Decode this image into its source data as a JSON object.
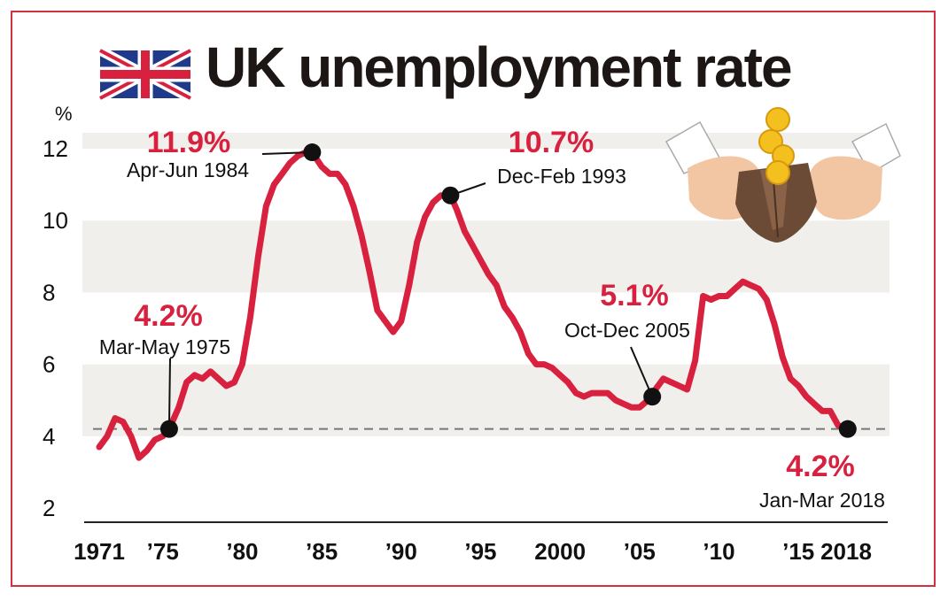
{
  "chart_data": {
    "type": "line",
    "title": "UK unemployment rate",
    "ylabel": "%",
    "xlabel": "",
    "xlim": [
      1971,
      2018
    ],
    "ylim": [
      2,
      12
    ],
    "y_ticks": [
      "2",
      "4",
      "6",
      "8",
      "10",
      "12"
    ],
    "x_tick_labels": [
      {
        "x": 1971,
        "label": "1971"
      },
      {
        "x": 1975,
        "label": "’75"
      },
      {
        "x": 1980,
        "label": "’80"
      },
      {
        "x": 1985,
        "label": "’85"
      },
      {
        "x": 1990,
        "label": "’90"
      },
      {
        "x": 1995,
        "label": "’95"
      },
      {
        "x": 2000,
        "label": "2000"
      },
      {
        "x": 2005,
        "label": "’05"
      },
      {
        "x": 2010,
        "label": "’10"
      },
      {
        "x": 2015,
        "label": "’15"
      },
      {
        "x": 2018,
        "label": "2018"
      }
    ],
    "reference_line": 4.2,
    "grid": "alternating horizontal bands",
    "series": [
      {
        "x": [
          1971.0,
          1971.5,
          1972.0,
          1972.5,
          1973.0,
          1973.5,
          1974.0,
          1974.5,
          1975.0,
          1975.4,
          1976.0,
          1976.5,
          1977.0,
          1977.5,
          1978.0,
          1978.5,
          1979.0,
          1979.5,
          1980.0,
          1980.5,
          1981.0,
          1981.5,
          1982.0,
          1982.5,
          1983.0,
          1983.5,
          1984.0,
          1984.4,
          1985.0,
          1985.5,
          1986.0,
          1986.5,
          1987.0,
          1987.5,
          1988.0,
          1988.5,
          1989.0,
          1989.5,
          1990.0,
          1990.5,
          1991.0,
          1991.5,
          1992.0,
          1992.5,
          1993.1,
          1993.5,
          1994.0,
          1994.5,
          1995.0,
          1995.5,
          1996.0,
          1996.5,
          1997.0,
          1997.5,
          1998.0,
          1998.5,
          1999.0,
          1999.5,
          2000.0,
          2000.5,
          2001.0,
          2001.5,
          2002.0,
          2002.5,
          2003.0,
          2003.5,
          2004.0,
          2004.5,
          2005.0,
          2005.8,
          2006.0,
          2006.5,
          2007.0,
          2007.5,
          2008.0,
          2008.5,
          2009.0,
          2009.5,
          2010.0,
          2010.5,
          2011.0,
          2011.5,
          2012.0,
          2012.5,
          2013.0,
          2013.5,
          2014.0,
          2014.5,
          2015.0,
          2015.5,
          2016.0,
          2016.5,
          2017.0,
          2017.5,
          2018.1
        ],
        "values": [
          3.7,
          4.0,
          4.5,
          4.4,
          4.0,
          3.4,
          3.6,
          3.9,
          4.0,
          4.2,
          4.8,
          5.5,
          5.7,
          5.6,
          5.8,
          5.6,
          5.4,
          5.5,
          6.0,
          7.3,
          9.0,
          10.4,
          11.0,
          11.3,
          11.6,
          11.8,
          11.9,
          11.9,
          11.5,
          11.3,
          11.3,
          11.0,
          10.4,
          9.6,
          8.6,
          7.5,
          7.2,
          6.9,
          7.2,
          8.2,
          9.4,
          10.1,
          10.5,
          10.7,
          10.7,
          10.3,
          9.7,
          9.3,
          8.9,
          8.5,
          8.2,
          7.6,
          7.3,
          6.9,
          6.3,
          6.0,
          6.0,
          5.9,
          5.7,
          5.5,
          5.2,
          5.1,
          5.2,
          5.2,
          5.2,
          5.0,
          4.9,
          4.8,
          4.8,
          5.1,
          5.3,
          5.6,
          5.5,
          5.4,
          5.3,
          6.1,
          7.9,
          7.8,
          7.9,
          7.9,
          8.1,
          8.3,
          8.2,
          8.1,
          7.8,
          7.1,
          6.2,
          5.6,
          5.4,
          5.1,
          4.9,
          4.7,
          4.7,
          4.3,
          4.2
        ]
      }
    ],
    "annotations": [
      {
        "x": 1975.4,
        "y": 4.2,
        "value_label": "4.2%",
        "date_label": "Mar-May 1975"
      },
      {
        "x": 1984.4,
        "y": 11.9,
        "value_label": "11.9%",
        "date_label": "Apr-Jun 1984"
      },
      {
        "x": 1993.1,
        "y": 10.7,
        "value_label": "10.7%",
        "date_label": "Dec-Feb 1993"
      },
      {
        "x": 2005.8,
        "y": 5.1,
        "value_label": "5.1%",
        "date_label": "Oct-Dec 2005"
      },
      {
        "x": 2018.1,
        "y": 4.2,
        "value_label": "4.2%",
        "date_label": "Jan-Mar 2018"
      }
    ],
    "colors": {
      "line": "#d8213f",
      "accent": "#d8213f",
      "dots": "#111111",
      "frame": "#d4303f"
    }
  },
  "header": {
    "title": "UK unemployment rate"
  },
  "decorations": {
    "flag": "union-jack-icon",
    "illustration": "hands-wallet-coins-icon"
  }
}
